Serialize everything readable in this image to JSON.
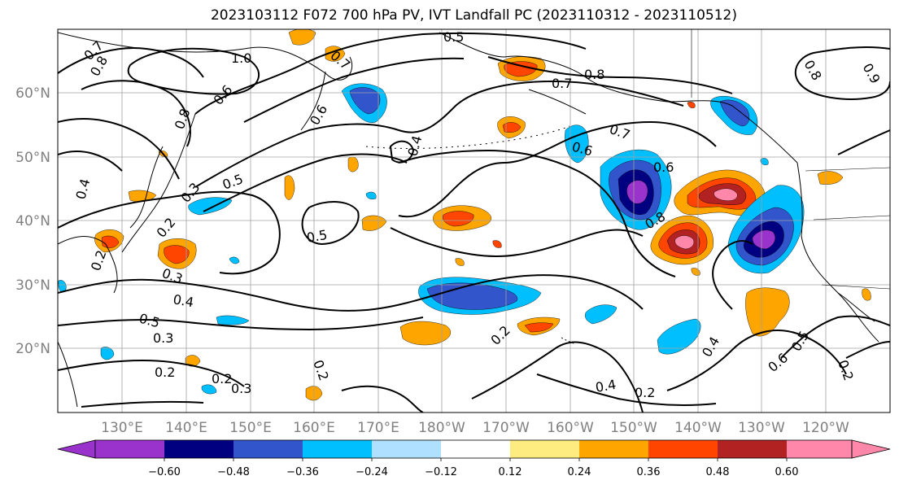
{
  "title": "2023103112 F072 700 hPa PV, IVT Landfall PC (2023110312 - 2023110512)",
  "lat_labels": [
    "60°N",
    "50°N",
    "40°N",
    "30°N",
    "20°N"
  ],
  "lon_labels": [
    "130°E",
    "140°E",
    "150°E",
    "160°E",
    "170°E",
    "180°W",
    "170°W",
    "160°W",
    "150°W",
    "140°W",
    "130°W",
    "120°W"
  ],
  "contour_labels": [
    "0.5",
    "0.7",
    "0.8",
    "1.0",
    "0.7",
    "0.8",
    "0.7",
    "0.6",
    "0.8",
    "0.6",
    "0.4",
    "0.7",
    "0.6",
    "0.6",
    "0.4",
    "0.5",
    "0.2",
    "0.3",
    "0.5",
    "0.8",
    "0.3",
    "0.2",
    "0.4",
    "0.5",
    "0.3",
    "0.2",
    "0.2",
    "0.3",
    "0.2",
    "0.2",
    "0.4",
    "0.2",
    "0.4",
    "0.6",
    "0.5",
    "0.2",
    "0.8",
    "0.9"
  ],
  "colorbar": {
    "ticks": [
      "−0.60",
      "−0.48",
      "−0.36",
      "−0.24",
      "−0.12",
      "0.12",
      "0.24",
      "0.36",
      "0.48",
      "0.60"
    ],
    "colors": [
      "#9933cc",
      "#000080",
      "#3355cc",
      "#00bfff",
      "#b0e0ff",
      "#ffffff",
      "#ffec80",
      "#ffa500",
      "#ff4500",
      "#b22222",
      "#ff88aa",
      "#ff88aa"
    ]
  },
  "shading_colors": {
    "purple": "#9933cc",
    "navy": "#000080",
    "blue": "#3355cc",
    "cyan": "#00bfff",
    "light_blue": "#b0e0ff",
    "yellow": "#ffec80",
    "orange": "#ffa500",
    "red_orange": "#ff4500",
    "dark_red": "#b22222",
    "pink": "#ff88aa"
  }
}
